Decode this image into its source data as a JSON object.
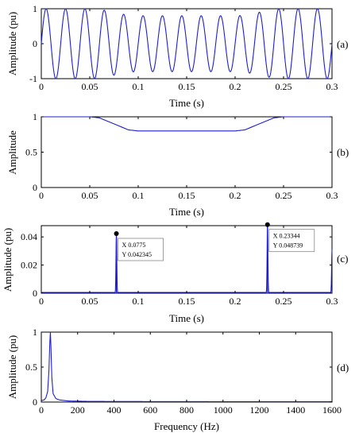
{
  "chart_data": [
    {
      "id": "a",
      "type": "line",
      "panel_label": "(a)",
      "xlabel": "Time (s)",
      "ylabel": "Amplitude (pu)",
      "xlim": [
        0,
        0.3
      ],
      "ylim": [
        -1,
        1
      ],
      "xticks": [
        "0",
        "0.05",
        "0.1",
        "0.15",
        "0.2",
        "0.25",
        "0.3"
      ],
      "yticks": [
        "-1",
        "0",
        "1"
      ],
      "series": [
        {
          "frequency_hz": 50,
          "segments": [
            {
              "t_start": 0,
              "t_end": 0.05,
              "amplitude": 1.0
            },
            {
              "t_start": 0.05,
              "t_end": 0.1,
              "amplitude_from": 1.0,
              "amplitude_to": 0.8
            },
            {
              "t_start": 0.1,
              "t_end": 0.2,
              "amplitude": 0.8
            },
            {
              "t_start": 0.2,
              "t_end": 0.25,
              "amplitude_from": 0.8,
              "amplitude_to": 1.0
            },
            {
              "t_start": 0.25,
              "t_end": 0.3,
              "amplitude": 1.0
            }
          ]
        }
      ]
    },
    {
      "id": "b",
      "type": "line",
      "panel_label": "(b)",
      "xlabel": "Time (s)",
      "ylabel": "Amplitude",
      "xlim": [
        0,
        0.3
      ],
      "ylim": [
        0,
        1
      ],
      "xticks": [
        "0",
        "0.05",
        "0.1",
        "0.15",
        "0.2",
        "0.25",
        "0.3"
      ],
      "yticks": [
        "0",
        "0.5",
        "1"
      ],
      "series": [
        {
          "x": [
            0,
            0.05,
            0.06,
            0.075,
            0.09,
            0.1,
            0.2,
            0.21,
            0.225,
            0.24,
            0.25,
            0.3
          ],
          "y": [
            1.0,
            1.0,
            0.985,
            0.9,
            0.815,
            0.8,
            0.8,
            0.815,
            0.9,
            0.985,
            1.0,
            1.0
          ]
        }
      ]
    },
    {
      "id": "c",
      "type": "line",
      "panel_label": "(c)",
      "xlabel": "Time (s)",
      "ylabel": "Amplitude (pu)",
      "xlim": [
        0,
        0.3
      ],
      "ylim": [
        0,
        0.048
      ],
      "xticks": [
        "0",
        "0.05",
        "0.1",
        "0.15",
        "0.2",
        "0.25",
        "0.3"
      ],
      "yticks": [
        "0",
        "0.02",
        "0.04"
      ],
      "peaks": [
        {
          "x": 0.0775,
          "y": 0.042345,
          "label_x": "X 0.0775",
          "label_y": "Y 0.042345"
        },
        {
          "x": 0.23344,
          "y": 0.048739,
          "label_x": "X 0.23344",
          "label_y": "Y 0.048739"
        }
      ],
      "edge_spikes": [
        {
          "x": 0.3,
          "y": 0.031
        }
      ],
      "baseline": 0.0005
    },
    {
      "id": "d",
      "type": "line",
      "panel_label": "(d)",
      "xlabel": "Frequency (Hz)",
      "ylabel": "Amplitude (pu)",
      "xlim": [
        0,
        1600
      ],
      "ylim": [
        0,
        1
      ],
      "xticks": [
        "0",
        "200",
        "400",
        "600",
        "800",
        "1000",
        "1200",
        "1400",
        "1600"
      ],
      "yticks": [
        "0",
        "0.5",
        "1"
      ],
      "series": [
        {
          "x": [
            0,
            15,
            25,
            35,
            42,
            47,
            50,
            53,
            58,
            65,
            80,
            100,
            150,
            250,
            400,
            800,
            1600
          ],
          "y": [
            0.02,
            0.03,
            0.06,
            0.15,
            0.45,
            0.85,
            1.0,
            0.8,
            0.35,
            0.12,
            0.05,
            0.03,
            0.015,
            0.01,
            0.008,
            0.006,
            0.005
          ]
        }
      ]
    }
  ]
}
